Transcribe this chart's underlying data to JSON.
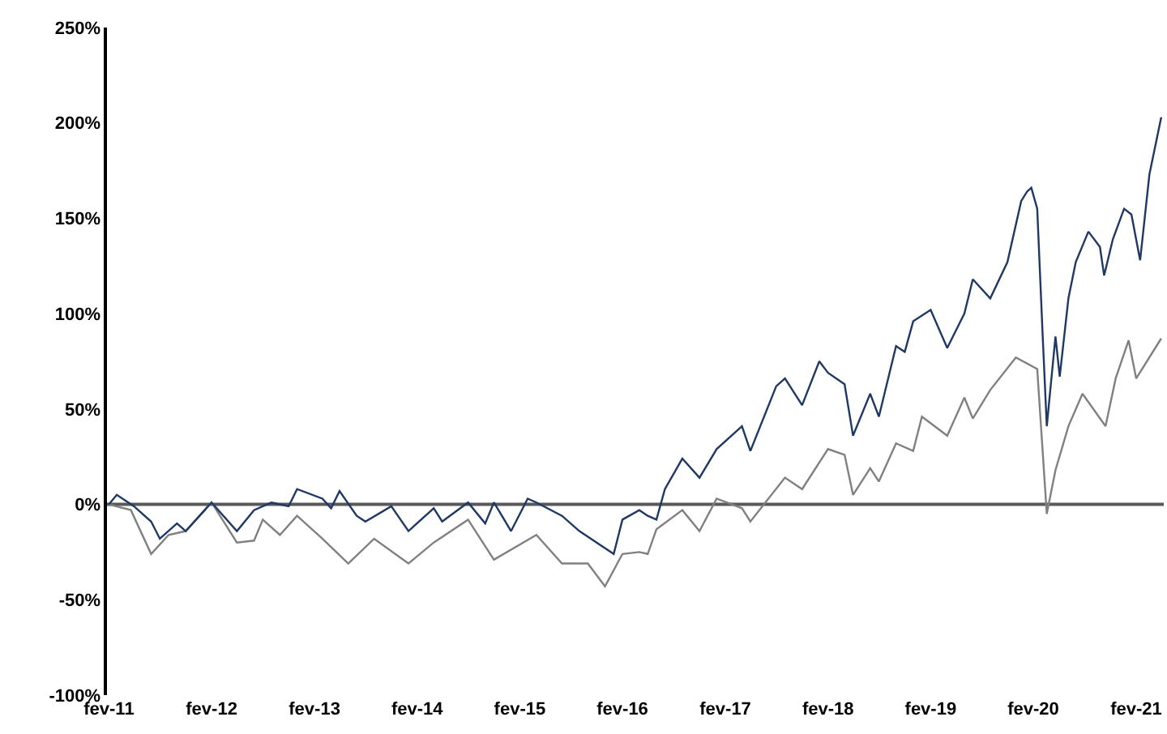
{
  "chart_data": {
    "type": "line",
    "xlim": [
      "2011-01-25",
      "2021-05-10"
    ],
    "xticks": [
      {
        "value": "2011-02",
        "label": "fev-11"
      },
      {
        "value": "2012-02",
        "label": "fev-12"
      },
      {
        "value": "2013-02",
        "label": "fev-13"
      },
      {
        "value": "2014-02",
        "label": "fev-14"
      },
      {
        "value": "2015-02",
        "label": "fev-15"
      },
      {
        "value": "2016-02",
        "label": "fev-16"
      },
      {
        "value": "2017-02",
        "label": "fev-17"
      },
      {
        "value": "2018-02",
        "label": "fev-18"
      },
      {
        "value": "2019-02",
        "label": "fev-19"
      },
      {
        "value": "2020-02",
        "label": "fev-20"
      },
      {
        "value": "2021-02",
        "label": "fev-21"
      }
    ],
    "ylim": [
      -100,
      250
    ],
    "yticks": [
      {
        "value": -100,
        "label": "-100%"
      },
      {
        "value": -50,
        "label": "-50%"
      },
      {
        "value": 0,
        "label": "0%"
      },
      {
        "value": 50,
        "label": "50%"
      },
      {
        "value": 100,
        "label": "100%"
      },
      {
        "value": 150,
        "label": "150%"
      },
      {
        "value": 200,
        "label": "200%"
      },
      {
        "value": 250,
        "label": "250%"
      }
    ],
    "grid": false,
    "marker": "none",
    "line_style": "solid",
    "ref_lines": [
      {
        "axis": "y",
        "value": 0,
        "color": "#595959"
      }
    ],
    "series": [
      {
        "color": "#808080",
        "x": [
          "2011-02-01",
          "2011-04-20",
          "2011-07-01",
          "2011-09-01",
          "2011-11-01",
          "2012-02-01",
          "2012-05-01",
          "2012-07-01",
          "2012-08-01",
          "2012-10-01",
          "2012-12-01",
          "2013-03-01",
          "2013-06-01",
          "2013-09-01",
          "2014-01-01",
          "2014-04-01",
          "2014-08-01",
          "2014-11-01",
          "2015-04-01",
          "2015-07-01",
          "2015-10-01",
          "2015-12-01",
          "2016-02-01",
          "2016-04-01",
          "2016-05-01",
          "2016-06-01",
          "2016-09-01",
          "2016-11-01",
          "2017-01-01",
          "2017-04-01",
          "2017-05-01",
          "2017-09-01",
          "2017-11-01",
          "2018-02-01",
          "2018-04-01",
          "2018-05-01",
          "2018-07-01",
          "2018-08-01",
          "2018-10-01",
          "2018-12-01",
          "2019-01-01",
          "2019-04-01",
          "2019-06-01",
          "2019-07-01",
          "2019-09-01",
          "2019-12-01",
          "2020-02-15",
          "2020-03-20",
          "2020-04-20",
          "2020-06-05",
          "2020-07-25",
          "2020-10-15",
          "2020-11-20",
          "2021-01-05",
          "2021-02-01",
          "2021-05-01"
        ],
        "values": [
          0,
          -3,
          -26,
          -16,
          -14,
          1,
          -20,
          -19,
          -8,
          -16,
          -6,
          -18,
          -31,
          -18,
          -31,
          -20,
          -8,
          -29,
          -16,
          -31,
          -31,
          -43,
          -26,
          -25,
          -26,
          -13,
          -3,
          -14,
          3,
          -2,
          -9,
          14,
          8,
          29,
          26,
          5,
          19,
          12,
          32,
          28,
          46,
          36,
          56,
          45,
          60,
          77,
          71,
          -5,
          18,
          41,
          58,
          41,
          66,
          86,
          66,
          87
        ]
      },
      {
        "color": "#1f3864",
        "x": [
          "2011-02-01",
          "2011-03-01",
          "2011-05-01",
          "2011-07-01",
          "2011-08-01",
          "2011-10-01",
          "2011-11-01",
          "2012-02-01",
          "2012-05-01",
          "2012-07-01",
          "2012-09-01",
          "2012-11-01",
          "2012-12-01",
          "2013-03-01",
          "2013-04-01",
          "2013-05-01",
          "2013-07-01",
          "2013-08-01",
          "2013-11-01",
          "2014-01-01",
          "2014-04-01",
          "2014-05-01",
          "2014-08-01",
          "2014-10-01",
          "2014-11-01",
          "2015-01-01",
          "2015-03-01",
          "2015-04-01",
          "2015-07-01",
          "2015-09-01",
          "2016-01-01",
          "2016-02-01",
          "2016-04-01",
          "2016-05-01",
          "2016-06-01",
          "2016-07-01",
          "2016-09-01",
          "2016-11-01",
          "2017-01-01",
          "2017-04-01",
          "2017-05-01",
          "2017-08-01",
          "2017-09-01",
          "2017-11-01",
          "2018-01-01",
          "2018-02-01",
          "2018-04-01",
          "2018-05-01",
          "2018-07-01",
          "2018-08-01",
          "2018-10-01",
          "2018-11-01",
          "2018-12-01",
          "2019-02-01",
          "2019-04-01",
          "2019-06-01",
          "2019-07-01",
          "2019-09-01",
          "2019-11-01",
          "2019-12-20",
          "2020-01-10",
          "2020-01-25",
          "2020-02-15",
          "2020-03-05",
          "2020-03-20",
          "2020-04-20",
          "2020-05-05",
          "2020-06-05",
          "2020-07-01",
          "2020-08-15",
          "2020-09-25",
          "2020-10-10",
          "2020-11-10",
          "2020-12-20",
          "2021-01-15",
          "2021-02-15",
          "2021-03-20",
          "2021-05-01"
        ],
        "values": [
          0,
          5,
          -1,
          -9,
          -18,
          -10,
          -14,
          1,
          -14,
          -3,
          1,
          -1,
          8,
          3,
          -2,
          7,
          -6,
          -9,
          -1,
          -14,
          -2,
          -9,
          1,
          -10,
          1,
          -14,
          3,
          1,
          -6,
          -14,
          -26,
          -8,
          -3,
          -6,
          -8,
          8,
          24,
          14,
          29,
          41,
          28,
          62,
          66,
          52,
          75,
          69,
          63,
          36,
          58,
          46,
          83,
          80,
          96,
          102,
          82,
          100,
          118,
          108,
          127,
          159,
          164,
          166,
          155,
          90,
          41,
          88,
          67,
          108,
          127,
          143,
          135,
          120,
          139,
          155,
          152,
          128,
          173,
          203
        ]
      }
    ]
  }
}
